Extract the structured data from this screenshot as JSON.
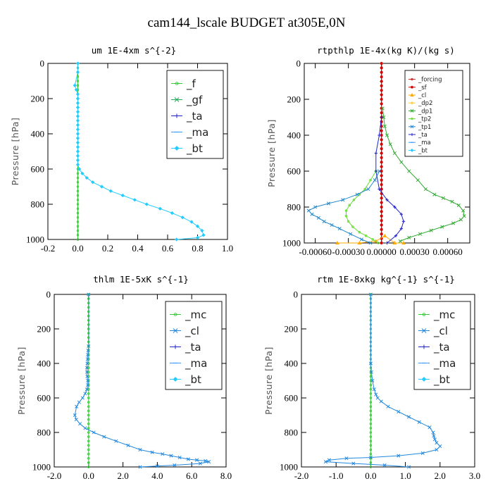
{
  "title": "cam144_lscale  BUDGET at305E,0N",
  "chart_data": [
    {
      "type": "line",
      "title": "um  1E-4xm s^{-2}",
      "ylabel": "Pressure [hPa]",
      "xlim": [
        -0.2,
        1.0
      ],
      "ylim": [
        0,
        1000
      ],
      "x_ticks": [
        "-0.2",
        "0.0",
        "0.2",
        "0.4",
        "0.6",
        "0.8",
        "1.0"
      ],
      "x_tick_values": [
        -0.2,
        0.0,
        0.2,
        0.4,
        0.6,
        0.8,
        1.0
      ],
      "y_ticks": [
        "0",
        "200",
        "400",
        "600",
        "800",
        "1000"
      ],
      "legend_position": "top-right",
      "legend_size": "large",
      "series": [
        {
          "name": "_f",
          "color": "#33cc33",
          "marker": "circle",
          "x": [
            0,
            0,
            0,
            0,
            0,
            0,
            0,
            0,
            0,
            0,
            0,
            0,
            0,
            0,
            0,
            0,
            0,
            0,
            0,
            0,
            0,
            0,
            0,
            0,
            0,
            0,
            0,
            0,
            0,
            0,
            0,
            0,
            0,
            0,
            0,
            0,
            0,
            0,
            0,
            0,
            0
          ],
          "y": [
            0,
            25,
            50,
            75,
            100,
            125,
            150,
            175,
            200,
            225,
            250,
            275,
            300,
            325,
            350,
            375,
            400,
            425,
            450,
            475,
            500,
            525,
            550,
            575,
            600,
            625,
            650,
            675,
            700,
            725,
            750,
            775,
            800,
            825,
            850,
            875,
            900,
            925,
            950,
            975,
            1000
          ]
        },
        {
          "name": "_gf",
          "color": "#22aa55",
          "marker": "x",
          "x": [],
          "y": []
        },
        {
          "name": "_ta",
          "color": "#2222cc",
          "marker": "plus",
          "x": [],
          "y": []
        },
        {
          "name": "_ma",
          "color": "#3399ff",
          "marker": "dash",
          "x": [],
          "y": []
        },
        {
          "name": "_bt",
          "color": "#22ccff",
          "marker": "diamond",
          "x": [
            0,
            0,
            -0.02,
            -0.01,
            0,
            0,
            0,
            0,
            0,
            0,
            0,
            0,
            0,
            0,
            0,
            0,
            0,
            0,
            0,
            0,
            0,
            0.01,
            0.03,
            0.06,
            0.1,
            0.16,
            0.22,
            0.3,
            0.38,
            0.46,
            0.55,
            0.63,
            0.7,
            0.76,
            0.8,
            0.83,
            0.84,
            0.8,
            0.66
          ],
          "y": [
            0,
            50,
            125,
            150,
            175,
            200,
            225,
            250,
            275,
            300,
            325,
            350,
            375,
            400,
            425,
            450,
            475,
            500,
            525,
            550,
            575,
            600,
            625,
            650,
            675,
            700,
            725,
            750,
            775,
            800,
            825,
            850,
            875,
            900,
            925,
            950,
            975,
            990,
            1000
          ]
        }
      ]
    },
    {
      "type": "line",
      "title": "rtpthlp  1E-4x(kg K)/(kg s)",
      "ylabel": "Pressure [hPa]",
      "xlim": [
        -0.0007,
        0.0008
      ],
      "ylim": [
        0,
        1000
      ],
      "x_ticks": [
        "-0.00060",
        "-0.00030",
        "0.00000",
        "0.00030",
        "0.00060"
      ],
      "x_tick_values": [
        -0.0006,
        -0.0003,
        0.0,
        0.0003,
        0.0006
      ],
      "y_ticks": [
        "0",
        "200",
        "400",
        "600",
        "800",
        "1000"
      ],
      "legend_position": "top-right",
      "legend_size": "small",
      "series": [
        {
          "name": "_forcing",
          "color": "#cc2222",
          "marker": "circle",
          "x": [
            0,
            0,
            0,
            0,
            0,
            0,
            0,
            0,
            0,
            0,
            0,
            0,
            0,
            0,
            0,
            0,
            0,
            0,
            0,
            0,
            0,
            0,
            0,
            0,
            0,
            0,
            0,
            0,
            0,
            0,
            0,
            0,
            0,
            0,
            0,
            0,
            0,
            0,
            0,
            0,
            0
          ],
          "y": [
            0,
            25,
            50,
            75,
            100,
            125,
            150,
            175,
            200,
            225,
            250,
            275,
            300,
            325,
            350,
            375,
            400,
            425,
            450,
            475,
            500,
            525,
            550,
            575,
            600,
            625,
            650,
            675,
            700,
            725,
            750,
            775,
            800,
            825,
            850,
            875,
            900,
            925,
            950,
            975,
            1000
          ]
        },
        {
          "name": "_sf",
          "color": "#cc0000",
          "marker": "star",
          "x": [
            0,
            0,
            0,
            0,
            0,
            0,
            0,
            0,
            0,
            0,
            0,
            0,
            0,
            0,
            0,
            0,
            0,
            0,
            0,
            0,
            0,
            0,
            0,
            0,
            0,
            0,
            0,
            0,
            0,
            0,
            0,
            0,
            0,
            0,
            0,
            0,
            0,
            0,
            0,
            0,
            0
          ],
          "y": [
            0,
            25,
            50,
            75,
            100,
            125,
            150,
            175,
            200,
            225,
            250,
            275,
            300,
            325,
            350,
            375,
            400,
            425,
            450,
            475,
            500,
            525,
            550,
            575,
            600,
            625,
            650,
            675,
            700,
            725,
            750,
            775,
            800,
            825,
            850,
            875,
            900,
            925,
            950,
            975,
            1000
          ]
        },
        {
          "name": "_cl",
          "color": "#ffaa00",
          "marker": "triangle",
          "x": [
            -0.0004,
            -0.0002,
            -5e-05,
            3e-05,
            0.00012,
            0.0002
          ],
          "y": [
            1000,
            1000,
            990,
            960,
            1000,
            1000
          ]
        },
        {
          "name": "_dp2",
          "color": "#ffcc33",
          "marker": "circle",
          "x": [],
          "y": []
        },
        {
          "name": "_dp1",
          "color": "#33aa33",
          "marker": "x",
          "x": [
            1e-05,
            2e-05,
            3e-05,
            5e-05,
            8e-05,
            0.00012,
            0.00018,
            0.00025,
            0.00033,
            0.0004,
            0.00048,
            0.00056,
            0.00064,
            0.0007,
            0.00074,
            0.00075,
            0.00072,
            0.00065,
            0.00055,
            0.00045,
            0.00035,
            0.00025,
            0.00017
          ],
          "y": [
            250,
            300,
            350,
            400,
            450,
            500,
            550,
            600,
            650,
            700,
            730,
            750,
            770,
            790,
            820,
            850,
            870,
            890,
            910,
            930,
            950,
            970,
            990
          ]
        },
        {
          "name": "_tp2",
          "color": "#66dd33",
          "marker": "circle",
          "x": [
            -5e-05,
            -0.0001,
            -0.00015,
            -0.0002,
            -0.00025,
            -0.00029,
            -0.00032,
            -0.00032,
            -0.0003,
            -0.00026,
            -0.0002,
            -0.00014,
            -8e-05,
            -3e-05
          ],
          "y": [
            600,
            650,
            700,
            730,
            760,
            790,
            820,
            850,
            880,
            910,
            940,
            960,
            980,
            1000
          ]
        },
        {
          "name": "_tp1",
          "color": "#2288cc",
          "marker": "x",
          "x": [
            -2e-05,
            -6e-05,
            -0.00012,
            -0.00022,
            -0.00035,
            -0.00048,
            -0.0006,
            -0.00066,
            -0.00063,
            -0.00057,
            -0.00052,
            -0.00045,
            -0.00038,
            -0.00028,
            -0.00018,
            -0.0001
          ],
          "y": [
            600,
            650,
            700,
            730,
            760,
            780,
            800,
            820,
            840,
            860,
            880,
            900,
            920,
            950,
            980,
            1000
          ]
        },
        {
          "name": "_ta",
          "color": "#2222cc",
          "marker": "plus",
          "x": [
            0,
            -2e-05,
            -5e-05,
            -5e-05,
            -2e-05,
            5e-05,
            0.00012,
            0.00018,
            0.0002,
            0.00018,
            0.00013,
            5e-05
          ],
          "y": [
            300,
            400,
            500,
            600,
            700,
            760,
            800,
            840,
            880,
            920,
            960,
            1000
          ]
        },
        {
          "name": "_ma",
          "color": "#3399ff",
          "marker": "dash",
          "x": [],
          "y": []
        },
        {
          "name": "_bt",
          "color": "#22ccff",
          "marker": "diamond",
          "x": [],
          "y": []
        }
      ]
    },
    {
      "type": "line",
      "title": "thlm  1E-5xK s^{-1}",
      "ylabel": "Pressure [hPa]",
      "xlim": [
        -2.0,
        8.0
      ],
      "ylim": [
        0,
        1000
      ],
      "x_ticks": [
        "-2.0",
        "0.0",
        "2.0",
        "4.0",
        "6.0",
        "8.0"
      ],
      "x_tick_values": [
        -2.0,
        0.0,
        2.0,
        4.0,
        6.0,
        8.0
      ],
      "y_ticks": [
        "0",
        "200",
        "400",
        "600",
        "800",
        "1000"
      ],
      "legend_position": "top-right",
      "legend_size": "large",
      "series": [
        {
          "name": "_mc",
          "color": "#33cc33",
          "marker": "circle",
          "x": [
            0,
            0,
            0,
            0,
            0,
            0,
            0,
            0,
            0,
            0,
            0,
            0,
            0,
            0,
            0,
            0,
            0,
            0,
            0,
            0,
            0,
            0,
            0,
            0,
            0,
            0,
            0,
            0,
            0,
            0,
            0,
            0,
            0,
            0,
            0,
            0,
            0,
            0,
            0,
            0,
            0
          ],
          "y": [
            0,
            25,
            50,
            75,
            100,
            125,
            150,
            175,
            200,
            225,
            250,
            275,
            300,
            325,
            350,
            375,
            400,
            425,
            450,
            475,
            500,
            525,
            550,
            575,
            600,
            625,
            650,
            675,
            700,
            725,
            750,
            775,
            800,
            825,
            850,
            875,
            900,
            925,
            950,
            975,
            1000
          ]
        },
        {
          "name": "_cl",
          "color": "#2288dd",
          "marker": "x",
          "x": [
            0,
            0,
            -0.03,
            -0.05,
            -0.06,
            -0.08,
            -0.1,
            -0.1,
            -0.08,
            -0.05,
            -0.05,
            -0.1,
            -0.2,
            -0.35,
            -0.55,
            -0.7,
            -0.8,
            -0.72,
            -0.5,
            -0.2,
            0.3,
            0.9,
            1.6,
            2.3,
            3.0,
            3.7,
            4.3,
            4.8,
            5.3,
            5.8,
            6.3,
            6.8,
            7.0,
            6.5,
            5.0,
            4.0,
            3.0
          ],
          "y": [
            0,
            300,
            325,
            350,
            375,
            400,
            425,
            450,
            475,
            500,
            525,
            550,
            575,
            600,
            625,
            650,
            700,
            725,
            750,
            775,
            800,
            825,
            850,
            875,
            900,
            915,
            925,
            935,
            945,
            955,
            960,
            965,
            970,
            980,
            990,
            995,
            1000
          ]
        },
        {
          "name": "_ta",
          "color": "#2222cc",
          "marker": "plus",
          "x": [],
          "y": []
        },
        {
          "name": "_ma",
          "color": "#3399ff",
          "marker": "dash",
          "x": [],
          "y": []
        },
        {
          "name": "_bt",
          "color": "#22ccff",
          "marker": "diamond",
          "x": [],
          "y": []
        }
      ]
    },
    {
      "type": "line",
      "title": "rtm  1E-8xkg kg^{-1} s^{-1}",
      "ylabel": "Pressure [hPa]",
      "xlim": [
        -2.0,
        3.0
      ],
      "ylim": [
        0,
        1000
      ],
      "x_ticks": [
        "-2.0",
        "-1.0",
        "0.0",
        "1.0",
        "2.0",
        "3.0"
      ],
      "x_tick_values": [
        -2.0,
        -1.0,
        0.0,
        1.0,
        2.0,
        3.0
      ],
      "y_ticks": [
        "0",
        "200",
        "400",
        "600",
        "800",
        "1000"
      ],
      "legend_position": "top-right",
      "legend_size": "large",
      "series": [
        {
          "name": "_mc",
          "color": "#33cc33",
          "marker": "circle",
          "x": [
            0,
            0,
            0,
            0,
            0,
            0,
            0,
            0,
            0,
            0,
            0,
            0,
            0,
            0,
            0,
            0,
            0,
            0,
            0,
            0,
            0,
            0,
            0,
            0,
            0,
            0,
            0,
            0,
            0,
            0,
            0,
            0,
            0,
            0,
            0,
            0,
            0,
            0,
            0,
            0,
            0
          ],
          "y": [
            0,
            25,
            50,
            75,
            100,
            125,
            150,
            175,
            200,
            225,
            250,
            275,
            300,
            325,
            350,
            375,
            400,
            425,
            450,
            475,
            500,
            525,
            550,
            575,
            600,
            625,
            650,
            675,
            700,
            725,
            750,
            775,
            800,
            825,
            850,
            875,
            900,
            925,
            950,
            975,
            1000
          ]
        },
        {
          "name": "_cl",
          "color": "#2288dd",
          "marker": "x",
          "x": [
            0,
            0,
            0.02,
            0.05,
            0.1,
            0.15,
            0.2,
            0.3,
            0.5,
            0.8,
            1.1,
            1.4,
            1.7,
            1.8,
            1.82,
            1.85,
            1.9,
            2.0,
            1.9,
            1.5,
            0.8,
            0,
            -0.7,
            -1.2,
            -1.3,
            -0.5,
            0.4,
            1.1
          ],
          "y": [
            0,
            400,
            450,
            500,
            550,
            580,
            600,
            620,
            650,
            680,
            710,
            740,
            770,
            800,
            820,
            840,
            860,
            880,
            900,
            920,
            935,
            945,
            950,
            960,
            970,
            980,
            990,
            1000
          ]
        },
        {
          "name": "_ta",
          "color": "#2222cc",
          "marker": "plus",
          "x": [],
          "y": []
        },
        {
          "name": "_ma",
          "color": "#3399ff",
          "marker": "dash",
          "x": [],
          "y": []
        },
        {
          "name": "_bt",
          "color": "#22ccff",
          "marker": "diamond",
          "x": [],
          "y": []
        }
      ]
    }
  ]
}
